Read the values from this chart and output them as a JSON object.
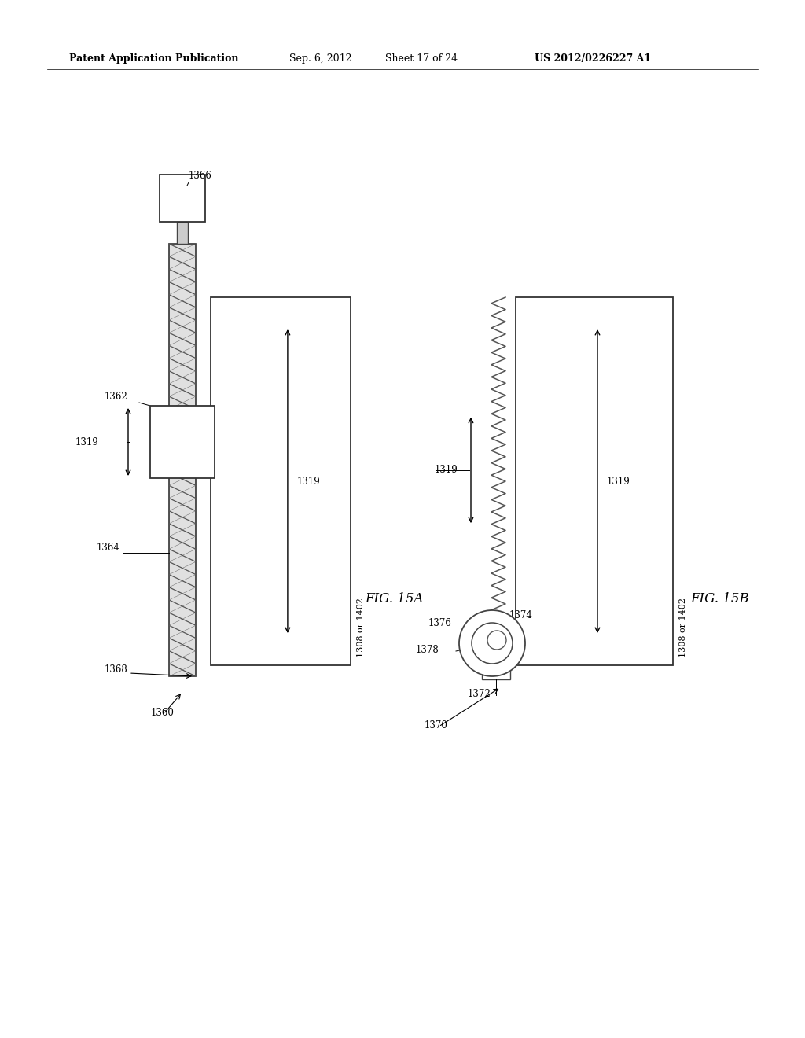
{
  "bg_color": "#ffffff",
  "header_text": "Patent Application Publication",
  "header_date": "Sep. 6, 2012",
  "header_sheet": "Sheet 17 of 24",
  "header_patent": "US 2012/0226227 A1",
  "fig_15a_label": "FIG. 15A",
  "fig_15b_label": "FIG. 15B"
}
